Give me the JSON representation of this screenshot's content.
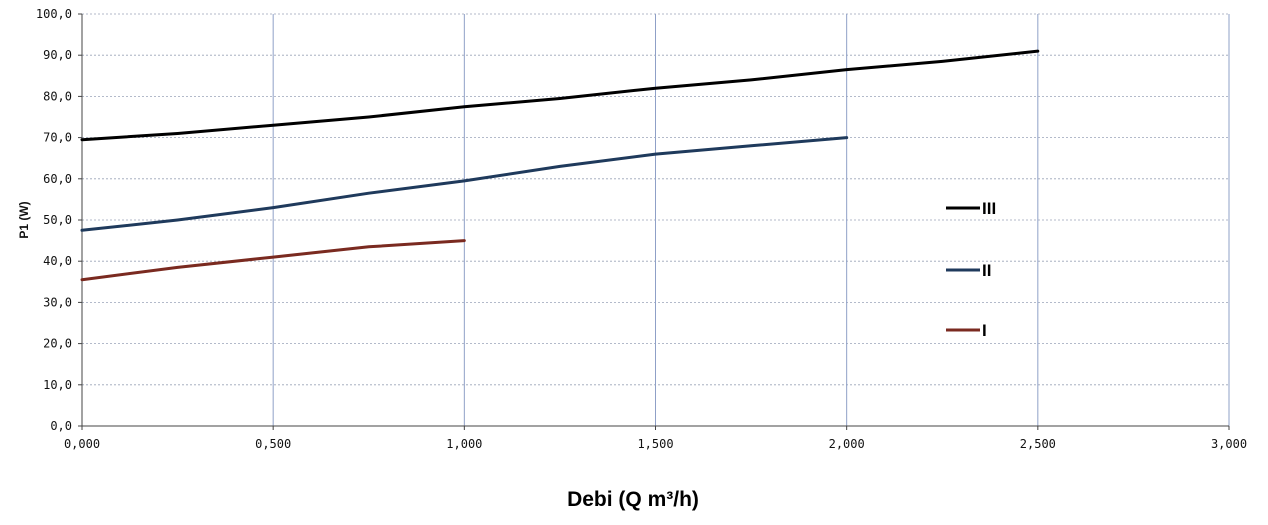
{
  "chart_data": {
    "type": "line",
    "xlabel": "Debi (Q m³/h)",
    "ylabel": "P1 (W)",
    "xlim": [
      0,
      3
    ],
    "ylim": [
      0,
      100
    ],
    "x_ticks": [
      "0,000",
      "0,500",
      "1,000",
      "1,500",
      "2,000",
      "2,500",
      "3,000"
    ],
    "y_ticks": [
      "0,0",
      "10,0",
      "20,0",
      "30,0",
      "40,0",
      "50,0",
      "60,0",
      "70,0",
      "80,0",
      "90,0",
      "100,0"
    ],
    "x_tick_values": [
      0,
      0.5,
      1,
      1.5,
      2,
      2.5,
      3
    ],
    "y_tick_values": [
      0,
      10,
      20,
      30,
      40,
      50,
      60,
      70,
      80,
      90,
      100
    ],
    "grid": true,
    "legend_position": "right",
    "series": [
      {
        "name": "III",
        "color": "#000000",
        "x": [
          0,
          0.25,
          0.5,
          0.75,
          1.0,
          1.25,
          1.5,
          1.75,
          2.0,
          2.25,
          2.5
        ],
        "y": [
          69.5,
          71.0,
          73.0,
          75.0,
          77.5,
          79.5,
          82.0,
          84.0,
          86.5,
          88.5,
          91.0
        ]
      },
      {
        "name": "II",
        "color": "#1f3a5c",
        "x": [
          0,
          0.25,
          0.5,
          0.75,
          1.0,
          1.25,
          1.5,
          1.75,
          2.0
        ],
        "y": [
          47.5,
          50.0,
          53.0,
          56.5,
          59.5,
          63.0,
          66.0,
          68.0,
          70.0
        ]
      },
      {
        "name": "I",
        "color": "#7a2a20",
        "x": [
          0,
          0.25,
          0.5,
          0.75,
          1.0
        ],
        "y": [
          35.5,
          38.5,
          41.0,
          43.5,
          45.0
        ]
      }
    ]
  }
}
